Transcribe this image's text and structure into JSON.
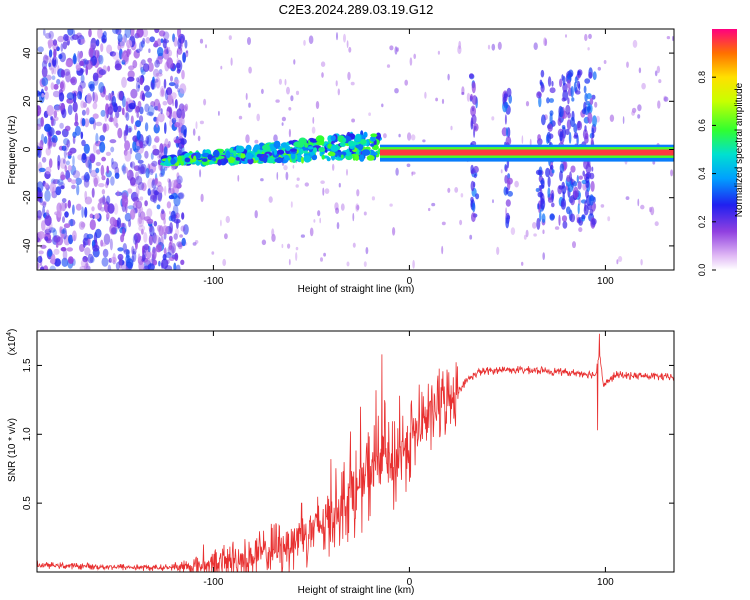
{
  "figure_title": "C2E3.2024.289.03.19.G12",
  "chart_data": [
    {
      "type": "heatmap",
      "xlabel": "Height of straight line (km)",
      "ylabel": "Frequency (Hz)",
      "xlim": [
        -190,
        135
      ],
      "ylim": [
        -50,
        50
      ],
      "xticks": [
        -100,
        0,
        100
      ],
      "yticks": [
        -40,
        -20,
        0,
        20,
        40
      ],
      "colorbar": {
        "label": "Normalized spectral amplitude",
        "range": [
          0,
          1
        ],
        "ticks": [
          "0.0",
          "0.2",
          "0.4",
          "0.6",
          "0.8"
        ]
      },
      "regions": [
        {
          "name": "noise",
          "x": [
            -190,
            -120
          ],
          "y": [
            -50,
            50
          ],
          "amplitude": 0.25
        },
        {
          "name": "ridge",
          "x": [
            -125,
            -15
          ],
          "y_center": [
            -5,
            1
          ],
          "amplitude": 0.45
        },
        {
          "name": "line",
          "x": [
            -15,
            135
          ],
          "y_center": [
            0,
            -2
          ],
          "amplitude": 0.95
        }
      ]
    },
    {
      "type": "line",
      "xlabel": "Height of straight line (km)",
      "ylabel": "SNR (10 * v/v)",
      "y_multiplier": "(x10",
      "y_multiplier_exp": "4",
      "y_multiplier_close": ")",
      "xlim": [
        -190,
        135
      ],
      "ylim": [
        0,
        17500
      ],
      "xticks": [
        -100,
        0,
        100
      ],
      "yticks": [
        0.5,
        1.0,
        1.5
      ],
      "ytick_labels": [
        "0.5",
        "1.0",
        "1.5"
      ],
      "color": "#e83030",
      "series": [
        {
          "x": [
            -190,
            -175,
            -160,
            -145,
            -130,
            -120,
            -110,
            -100,
            -90,
            -80,
            -70,
            -60,
            -50,
            -45,
            -40,
            -35,
            -30,
            -25,
            -20,
            -15,
            -12,
            -10,
            -5,
            0,
            5,
            10,
            15,
            20,
            25,
            30,
            35,
            40,
            50,
            60,
            70,
            80,
            90,
            95,
            97,
            99,
            105,
            115,
            125,
            135
          ],
          "y": [
            500,
            450,
            400,
            350,
            300,
            350,
            400,
            600,
            800,
            1100,
            1600,
            2200,
            3000,
            3500,
            4000,
            5000,
            5600,
            6200,
            7200,
            8000,
            9000,
            7000,
            8500,
            9500,
            10500,
            11200,
            12000,
            12600,
            13200,
            14000,
            14500,
            14600,
            14700,
            14650,
            14600,
            14500,
            14400,
            14300,
            16000,
            13500,
            14300,
            14250,
            14200,
            14150
          ]
        }
      ],
      "spikes": [
        {
          "x": -105,
          "y": 2000
        },
        {
          "x": -90,
          "y": 2200
        },
        {
          "x": -70,
          "y": 3200
        },
        {
          "x": -55,
          "y": 5000
        },
        {
          "x": -40,
          "y": 8200
        },
        {
          "x": -30,
          "y": 10200
        },
        {
          "x": -25,
          "y": 12000
        },
        {
          "x": -17,
          "y": 13200
        },
        {
          "x": -14,
          "y": 15800
        },
        {
          "x": -12,
          "y": 9000
        },
        {
          "x": -5,
          "y": 12800
        },
        {
          "x": 2,
          "y": 10500
        },
        {
          "x": 8,
          "y": 12000
        },
        {
          "x": 97,
          "y": 17300
        },
        {
          "x": 96,
          "y": 10300
        }
      ]
    }
  ]
}
